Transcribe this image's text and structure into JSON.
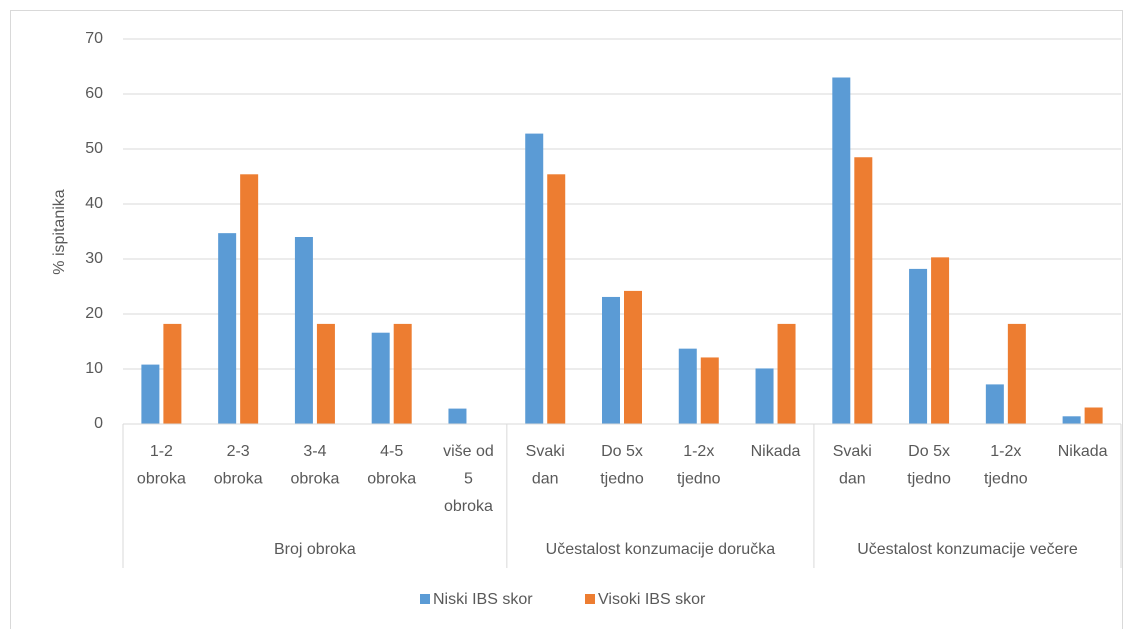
{
  "chart_data": {
    "type": "bar",
    "y_label": "% ispitanika",
    "groups": [
      {
        "name": "Broj obroka",
        "categories": [
          [
            "1-2",
            "obroka"
          ],
          [
            "2-3",
            "obroka"
          ],
          [
            "3-4",
            "obroka"
          ],
          [
            "4-5",
            "obroka"
          ],
          [
            "više od",
            "5",
            "obroka"
          ]
        ]
      },
      {
        "name": "Učestalost konzumacije doručka",
        "categories": [
          [
            "Svaki",
            "dan"
          ],
          [
            "Do 5x",
            "tjedno"
          ],
          [
            "1-2x",
            "tjedno"
          ],
          [
            "Nikada"
          ]
        ]
      },
      {
        "name": "Učestalost konzumacije večere",
        "categories": [
          [
            "Svaki",
            "dan"
          ],
          [
            "Do 5x",
            "tjedno"
          ],
          [
            "1-2x",
            "tjedno"
          ],
          [
            "Nikada"
          ]
        ]
      }
    ],
    "series": [
      {
        "name": "Niski IBS skor",
        "color": "#5b9bd5",
        "values": [
          10.8,
          34.7,
          34,
          16.6,
          2.8,
          52.8,
          23.1,
          13.7,
          10.1,
          63,
          28.2,
          7.2,
          1.4
        ]
      },
      {
        "name": "Visoki IBS skor",
        "color": "#ed7d31",
        "values": [
          18.2,
          45.4,
          18.2,
          18.2,
          0,
          45.4,
          24.2,
          12.1,
          18.2,
          48.5,
          30.3,
          18.2,
          3
        ]
      }
    ],
    "ylim": [
      0,
      70
    ],
    "yticks": [
      0,
      10,
      20,
      30,
      40,
      50,
      60,
      70
    ],
    "grid": true,
    "legend": "bottom"
  }
}
